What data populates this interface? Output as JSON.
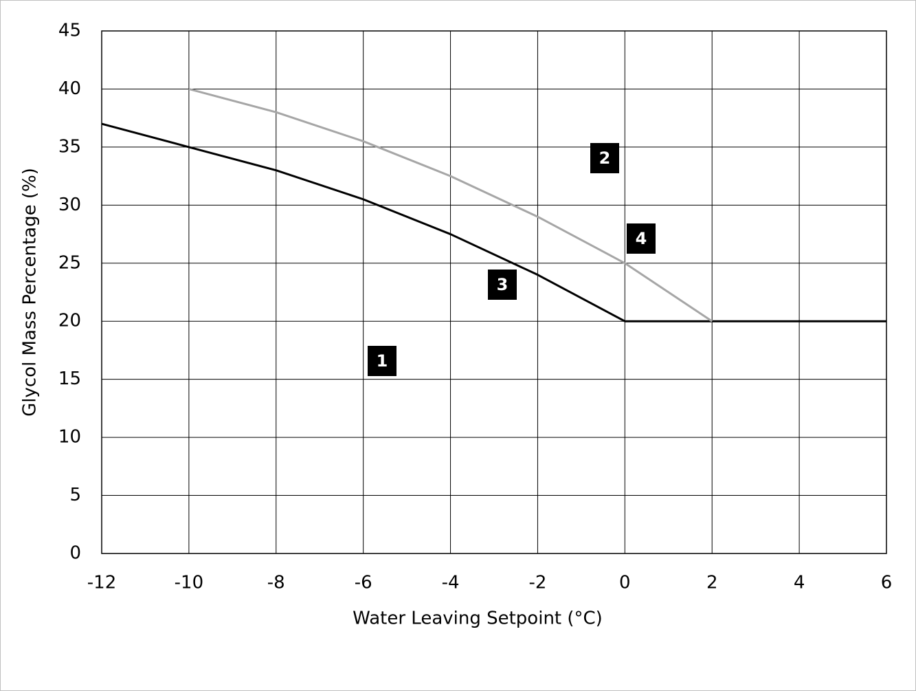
{
  "chart_data": {
    "type": "line",
    "xlabel": "Water Leaving Setpoint (°C)",
    "ylabel": "Glycol Mass Percentage (%)",
    "series": [
      {
        "color": "#000000",
        "x": [
          -12,
          -10,
          -8,
          -6,
          -4,
          -2,
          0,
          2,
          4,
          6
        ],
        "values": [
          37,
          35,
          33,
          30.5,
          27.5,
          24,
          20,
          20,
          20,
          20
        ]
      },
      {
        "color": "#a6a6a6",
        "x": [
          -10,
          -8,
          -6,
          -4,
          -2,
          0,
          2
        ],
        "values": [
          40,
          38,
          35.5,
          32.5,
          29,
          25,
          20
        ]
      }
    ],
    "annotations": [
      "1",
      "2",
      "3",
      "4"
    ],
    "xlim": [
      -12,
      6
    ],
    "xticks": [
      -12,
      -10,
      -8,
      -6,
      -4,
      -2,
      0,
      2,
      4,
      6
    ],
    "ylim": [
      0,
      45
    ],
    "yticks": [
      0,
      5,
      10,
      15,
      20,
      25,
      30,
      35,
      40,
      45
    ],
    "grid": true
  }
}
